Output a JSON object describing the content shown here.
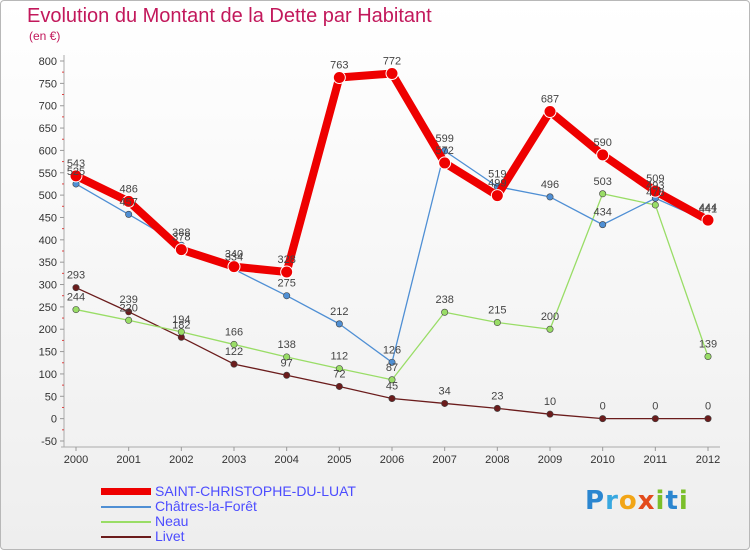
{
  "chart_data": {
    "type": "line",
    "title": "Evolution du Montant de la Dette par Habitant",
    "subtitle": "(en €)",
    "xlabel": "",
    "ylabel": "",
    "x": [
      "2000",
      "2001",
      "2002",
      "2003",
      "2004",
      "2005",
      "2006",
      "2007",
      "2008",
      "2009",
      "2010",
      "2011",
      "2012"
    ],
    "ylim": [
      -50,
      800
    ],
    "yticks": [
      -50,
      0,
      50,
      100,
      150,
      200,
      250,
      300,
      350,
      400,
      450,
      500,
      550,
      600,
      650,
      700,
      750,
      800
    ],
    "grid": false,
    "legend_position": "bottom-left",
    "series": [
      {
        "name": "SAINT-CHRISTOPHE-DU-LUAT",
        "color": "#ee0000",
        "values": [
          543,
          486,
          378,
          340,
          328,
          763,
          772,
          572,
          499,
          687,
          590,
          509,
          444
        ],
        "labels": [
          "543",
          "486",
          "378",
          "340",
          "328",
          "763",
          "772",
          "572",
          "499",
          "687",
          "590",
          "509",
          "444"
        ]
      },
      {
        "name": "Châtres-la-Forêt",
        "color": "#4f8fd4",
        "values": [
          525,
          457,
          388,
          334,
          275,
          212,
          126,
          599,
          519,
          496,
          434,
          493,
          441
        ],
        "labels": [
          "525",
          "457",
          "388",
          "334",
          "275",
          "212",
          "126",
          "599",
          "519",
          "496",
          "434",
          "493",
          "441"
        ]
      },
      {
        "name": "Neau",
        "color": "#99dd66",
        "values": [
          244,
          220,
          194,
          166,
          138,
          112,
          87,
          238,
          215,
          200,
          503,
          478,
          139
        ],
        "labels": [
          "244",
          "220",
          "194",
          "166",
          "138",
          "112",
          "87",
          "238",
          "215",
          "200",
          "503",
          "478",
          "139"
        ]
      },
      {
        "name": "Livet",
        "color": "#6b1c1c",
        "values": [
          293,
          239,
          182,
          122,
          97,
          72,
          45,
          34,
          23,
          10,
          0,
          0,
          0
        ],
        "labels": [
          "293",
          "239",
          "182",
          "122",
          "97",
          "72",
          "45",
          "34",
          "23",
          "10",
          "0",
          "0",
          "0"
        ]
      }
    ]
  },
  "brand": {
    "letters": [
      "P",
      "r",
      "o",
      "x",
      "i",
      "t",
      "i"
    ]
  }
}
